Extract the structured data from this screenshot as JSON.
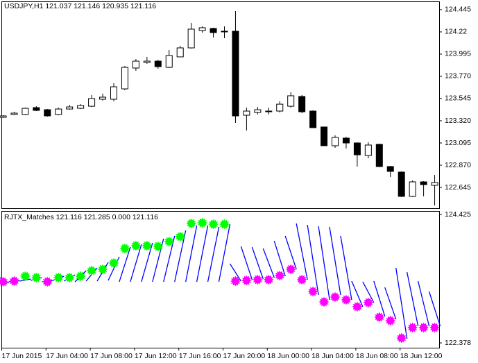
{
  "chart_data": [
    {
      "type": "candlestick",
      "title": "USDJPY,H1  121.037 121.146 120.935 121.116",
      "categories": [
        "17 Jun 2015",
        null,
        null,
        null,
        "17 Jun 04:00",
        null,
        null,
        null,
        "17 Jun 08:00",
        null,
        null,
        null,
        "17 Jun 12:00",
        null,
        null,
        null,
        "17 Jun 16:00",
        null,
        null,
        null,
        "17 Jun 20:00",
        null,
        null,
        null,
        "18 Jun 00:00",
        null,
        null,
        null,
        "18 Jun 04:00",
        null,
        null,
        null,
        "18 Jun 08:00",
        null,
        null,
        null,
        "18 Jun 12:00",
        null,
        null,
        null
      ],
      "open": [
        123.355,
        123.383,
        123.383,
        123.453,
        123.432,
        123.383,
        123.439,
        123.446,
        123.467,
        123.538,
        123.538,
        123.643,
        123.854,
        123.91,
        123.924,
        123.861,
        123.967,
        124.058,
        124.234,
        124.255,
        124.22,
        124.227,
        123.376,
        123.404,
        123.411,
        123.418,
        123.467,
        123.566,
        123.418,
        123.257,
        123.067,
        123.144,
        123.095,
        122.968,
        123.081,
        122.856,
        122.8,
        122.554,
        122.701,
        122.666
      ],
      "high": [
        123.376,
        123.411,
        123.453,
        123.467,
        123.439,
        123.453,
        123.481,
        123.488,
        123.58,
        123.594,
        123.699,
        123.875,
        123.945,
        123.967,
        123.938,
        124.037,
        124.079,
        124.311,
        124.276,
        124.262,
        124.276,
        124.431,
        123.453,
        123.46,
        123.453,
        123.517,
        123.608,
        123.58,
        123.425,
        123.257,
        123.172,
        123.158,
        123.102,
        123.102,
        123.088,
        122.863,
        122.807,
        122.715,
        122.708,
        122.771
      ],
      "low": [
        123.348,
        123.376,
        123.376,
        123.418,
        123.362,
        123.376,
        123.432,
        123.439,
        123.46,
        123.524,
        123.517,
        123.629,
        123.826,
        123.896,
        123.847,
        123.854,
        123.967,
        124.051,
        124.213,
        124.163,
        124.156,
        123.299,
        123.221,
        123.383,
        123.383,
        123.404,
        123.453,
        123.397,
        123.25,
        123.067,
        123.046,
        123.039,
        122.856,
        122.94,
        122.849,
        122.75,
        122.547,
        122.547,
        122.554,
        122.462
      ],
      "close": [
        123.369,
        123.397,
        123.446,
        123.425,
        123.369,
        123.439,
        123.46,
        123.474,
        123.545,
        123.559,
        123.664,
        123.861,
        123.924,
        123.924,
        123.868,
        123.981,
        124.058,
        124.248,
        124.262,
        124.213,
        124.227,
        123.369,
        123.418,
        123.432,
        123.418,
        123.488,
        123.573,
        123.411,
        123.25,
        123.067,
        123.151,
        123.095,
        122.975,
        123.074,
        122.856,
        122.807,
        122.554,
        122.701,
        122.673,
        122.694
      ],
      "up_color": "#ffffff",
      "down_color": "#000000",
      "ylim": [
        122.434,
        124.529
      ],
      "yticks": [
        124.445,
        124.22,
        123.995,
        {
          "value": 123.77,
          "label": "123.770"
        },
        123.545,
        {
          "value": 123.32,
          "label": "123.320"
        },
        123.095,
        {
          "value": 122.87,
          "label": "122.870"
        },
        122.645
      ]
    },
    {
      "type": "indicator",
      "title": "RJTX_Matches 121.116 121.285 0.000 121.116",
      "line_color": "#0000ff",
      "line_start": [
        123.44,
        123.352,
        123.363,
        123.374,
        123.352,
        123.374,
        123.363,
        123.352,
        123.363,
        123.363,
        123.374,
        123.352,
        123.352,
        123.352,
        123.352,
        123.352,
        123.352,
        123.352,
        123.352,
        123.352,
        123.352,
        123.639,
        123.916,
        123.905,
        123.883,
        124.004,
        124.082,
        124.281,
        124.259,
        124.237,
        124.226,
        124.082,
        123.363,
        123.352,
        123.363,
        123.263,
        123.573,
        123.507,
        123.363,
        123.197
      ],
      "line_end": [
        123.33,
        123.374,
        123.396,
        123.418,
        123.374,
        123.44,
        123.462,
        123.529,
        123.573,
        123.662,
        123.75,
        123.905,
        123.949,
        123.971,
        124.038,
        124.082,
        124.17,
        124.248,
        124.248,
        124.226,
        124.27,
        123.363,
        123.385,
        123.396,
        123.418,
        123.44,
        123.551,
        123.385,
        123.142,
        123.064,
        123.142,
        123.064,
        122.954,
        123.02,
        122.799,
        122.754,
        122.445,
        122.644,
        122.644,
        122.644
      ],
      "markers": [
        123.352,
        123.363,
        123.44,
        123.418,
        123.352,
        123.418,
        123.418,
        123.44,
        123.529,
        123.551,
        123.651,
        123.883,
        123.927,
        123.927,
        123.916,
        123.993,
        124.071,
        124.281,
        124.292,
        124.27,
        124.27,
        123.363,
        123.374,
        123.385,
        123.385,
        123.451,
        123.551,
        123.385,
        123.197,
        123.031,
        123.108,
        123.064,
        122.954,
        123.02,
        122.788,
        122.732,
        122.456,
        122.622,
        122.622,
        122.622
      ],
      "marker_colors": [
        "#ff00ff",
        "#ff00ff",
        "#00ff00",
        "#00ff00",
        "#ff00ff",
        "#00ff00",
        "#00ff00",
        "#00ff00",
        "#00ff00",
        "#00ff00",
        "#00ff00",
        "#00ff00",
        "#00ff00",
        "#00ff00",
        "#00ff00",
        "#00ff00",
        "#00ff00",
        "#00ff00",
        "#00ff00",
        "#00ff00",
        "#00ff00",
        "#ff00ff",
        "#ff00ff",
        "#ff00ff",
        "#ff00ff",
        "#ff00ff",
        "#ff00ff",
        "#ff00ff",
        "#ff00ff",
        "#ff00ff",
        "#ff00ff",
        "#ff00ff",
        "#ff00ff",
        "#ff00ff",
        "#ff00ff",
        "#ff00ff",
        "#ff00ff",
        "#ff00ff",
        "#ff00ff",
        "#ff00ff"
      ],
      "ylim": [
        122.301,
        124.48
      ],
      "yticks": [
        124.425,
        122.378
      ]
    }
  ]
}
